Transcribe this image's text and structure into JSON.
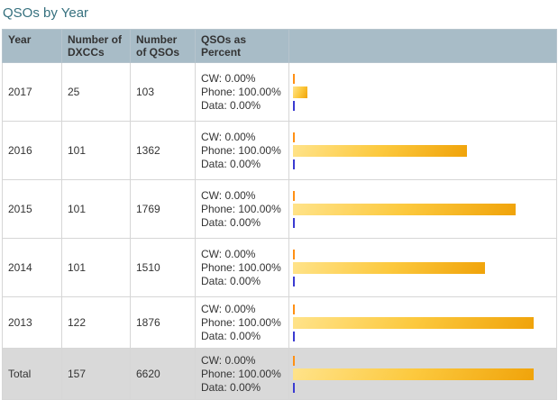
{
  "page": {
    "title": "QSOs by Year"
  },
  "table": {
    "headers": [
      "Year",
      "Number of DXCCs",
      "Number of QSOs",
      "QSOs as Percent"
    ],
    "rows": [
      {
        "year": "2017",
        "dxccs": "25",
        "qsos": "103",
        "cw_label": "CW: 0.00%",
        "phone_label": "Phone: 100.00%",
        "data_label": "Data: 0.00%",
        "phone_bar_pct": 5.5,
        "is_total": false
      },
      {
        "year": "2016",
        "dxccs": "101",
        "qsos": "1362",
        "cw_label": "CW: 0.00%",
        "phone_label": "Phone: 100.00%",
        "data_label": "Data: 0.00%",
        "phone_bar_pct": 68,
        "is_total": false
      },
      {
        "year": "2015",
        "dxccs": "101",
        "qsos": "1769",
        "cw_label": "CW: 0.00%",
        "phone_label": "Phone: 100.00%",
        "data_label": "Data: 0.00%",
        "phone_bar_pct": 87,
        "is_total": false
      },
      {
        "year": "2014",
        "dxccs": "101",
        "qsos": "1510",
        "cw_label": "CW: 0.00%",
        "phone_label": "Phone: 100.00%",
        "data_label": "Data: 0.00%",
        "phone_bar_pct": 75,
        "is_total": false
      },
      {
        "year": "2013",
        "dxccs": "122",
        "qsos": "1876",
        "cw_label": "CW: 0.00%",
        "phone_label": "Phone: 100.00%",
        "data_label": "Data: 0.00%",
        "phone_bar_pct": 94,
        "is_total": false
      },
      {
        "year": "Total",
        "dxccs": "157",
        "qsos": "6620",
        "cw_label": "CW: 0.00%",
        "phone_label": "Phone: 100.00%",
        "data_label": "Data: 0.00%",
        "phone_bar_pct": 94,
        "is_total": true
      }
    ]
  },
  "chart_data": {
    "type": "bar",
    "title": "QSOs as Percent",
    "categories": [
      "2017",
      "2016",
      "2015",
      "2014",
      "2013",
      "Total"
    ],
    "series": [
      {
        "name": "CW %",
        "values": [
          0,
          0,
          0,
          0,
          0,
          0
        ]
      },
      {
        "name": "Phone %",
        "values": [
          100,
          100,
          100,
          100,
          100,
          100
        ]
      },
      {
        "name": "Data %",
        "values": [
          0,
          0,
          0,
          0,
          0,
          0
        ]
      },
      {
        "name": "Number of QSOs",
        "values": [
          103,
          1362,
          1769,
          1510,
          1876,
          6620
        ]
      },
      {
        "name": "Number of DXCCs",
        "values": [
          25,
          101,
          101,
          101,
          122,
          157
        ]
      }
    ],
    "legend_position": "none",
    "grid": false
  },
  "colors": {
    "page_bg": "#ffffff",
    "title_text": "#35707e",
    "header_bg": "#a8bcc7",
    "header_text": "#333333",
    "body_text": "#333333",
    "row_border": "#d6d6d6",
    "total_row_bg": "#d9d9d9",
    "bar_light": "#ffe38a",
    "bar_mid": "#fcc93e",
    "bar_dark": "#f0a30a",
    "cw_tick": "#ff9015",
    "data_tick": "#3b3bd1"
  }
}
